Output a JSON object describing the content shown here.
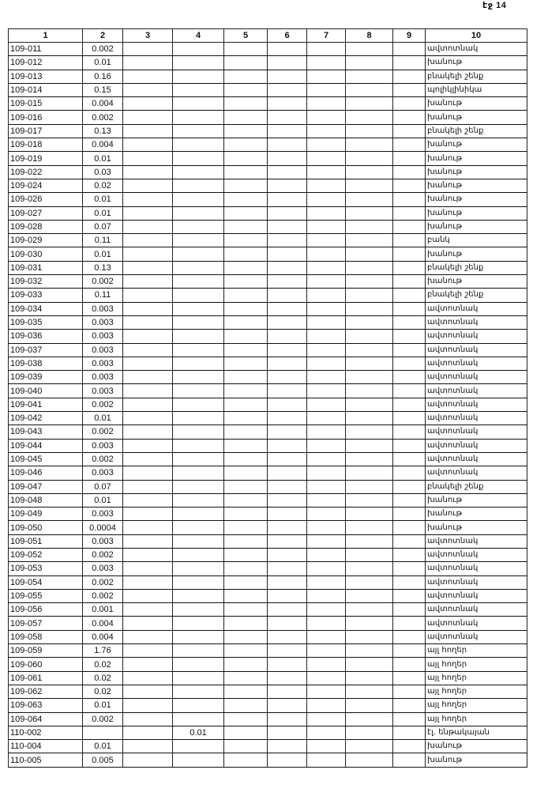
{
  "page_label": "էջ 14",
  "columns": [
    "1",
    "2",
    "3",
    "4",
    "5",
    "6",
    "7",
    "8",
    "9",
    "10"
  ],
  "rows": [
    [
      "109-011",
      "0.002",
      "",
      "",
      "",
      "",
      "",
      "",
      "",
      "ավտոտնակ"
    ],
    [
      "109-012",
      "0.01",
      "",
      "",
      "",
      "",
      "",
      "",
      "",
      "խանութ"
    ],
    [
      "109-013",
      "0.16",
      "",
      "",
      "",
      "",
      "",
      "",
      "",
      "բնակելի շենք"
    ],
    [
      "109-014",
      "0.15",
      "",
      "",
      "",
      "",
      "",
      "",
      "",
      "պոլիկլինիկա"
    ],
    [
      "109-015",
      "0.004",
      "",
      "",
      "",
      "",
      "",
      "",
      "",
      "խանութ"
    ],
    [
      "109-016",
      "0.002",
      "",
      "",
      "",
      "",
      "",
      "",
      "",
      "խանութ"
    ],
    [
      "109-017",
      "0.13",
      "",
      "",
      "",
      "",
      "",
      "",
      "",
      "բնակելի շենք"
    ],
    [
      "109-018",
      "0.004",
      "",
      "",
      "",
      "",
      "",
      "",
      "",
      "խանութ"
    ],
    [
      "109-019",
      "0.01",
      "",
      "",
      "",
      "",
      "",
      "",
      "",
      "խանութ"
    ],
    [
      "109-022",
      "0.03",
      "",
      "",
      "",
      "",
      "",
      "",
      "",
      "խանութ"
    ],
    [
      "109-024",
      "0.02",
      "",
      "",
      "",
      "",
      "",
      "",
      "",
      "խանութ"
    ],
    [
      "109-026",
      "0.01",
      "",
      "",
      "",
      "",
      "",
      "",
      "",
      "խանութ"
    ],
    [
      "109-027",
      "0.01",
      "",
      "",
      "",
      "",
      "",
      "",
      "",
      "խանութ"
    ],
    [
      "109-028",
      "0.07",
      "",
      "",
      "",
      "",
      "",
      "",
      "",
      "խանութ"
    ],
    [
      "109-029",
      "0.11",
      "",
      "",
      "",
      "",
      "",
      "",
      "",
      "բանկ"
    ],
    [
      "109-030",
      "0.01",
      "",
      "",
      "",
      "",
      "",
      "",
      "",
      "խանութ"
    ],
    [
      "109-031",
      "0.13",
      "",
      "",
      "",
      "",
      "",
      "",
      "",
      "բնակելի շենք"
    ],
    [
      "109-032",
      "0.002",
      "",
      "",
      "",
      "",
      "",
      "",
      "",
      "խանութ"
    ],
    [
      "109-033",
      "0.11",
      "",
      "",
      "",
      "",
      "",
      "",
      "",
      "բնակելի շենք"
    ],
    [
      "109-034",
      "0.003",
      "",
      "",
      "",
      "",
      "",
      "",
      "",
      "ավտոտնակ"
    ],
    [
      "109-035",
      "0.003",
      "",
      "",
      "",
      "",
      "",
      "",
      "",
      "ավտոտնակ"
    ],
    [
      "109-036",
      "0.003",
      "",
      "",
      "",
      "",
      "",
      "",
      "",
      "ավտոտնակ"
    ],
    [
      "109-037",
      "0.003",
      "",
      "",
      "",
      "",
      "",
      "",
      "",
      "ավտոտնակ"
    ],
    [
      "109-038",
      "0.003",
      "",
      "",
      "",
      "",
      "",
      "",
      "",
      "ավտոտնակ"
    ],
    [
      "109-039",
      "0.003",
      "",
      "",
      "",
      "",
      "",
      "",
      "",
      "ավտոտնակ"
    ],
    [
      "109-040",
      "0.003",
      "",
      "",
      "",
      "",
      "",
      "",
      "",
      "ավտոտնակ"
    ],
    [
      "109-041",
      "0.002",
      "",
      "",
      "",
      "",
      "",
      "",
      "",
      "ավտոտնակ"
    ],
    [
      "109-042",
      "0.01",
      "",
      "",
      "",
      "",
      "",
      "",
      "",
      "ավտոտնակ"
    ],
    [
      "109-043",
      "0.002",
      "",
      "",
      "",
      "",
      "",
      "",
      "",
      "ավտոտնակ"
    ],
    [
      "109-044",
      "0.003",
      "",
      "",
      "",
      "",
      "",
      "",
      "",
      "ավտոտնակ"
    ],
    [
      "109-045",
      "0.002",
      "",
      "",
      "",
      "",
      "",
      "",
      "",
      "ավտոտնակ"
    ],
    [
      "109-046",
      "0.003",
      "",
      "",
      "",
      "",
      "",
      "",
      "",
      "ավտոտնակ"
    ],
    [
      "109-047",
      "0.07",
      "",
      "",
      "",
      "",
      "",
      "",
      "",
      "բնակելի շենք"
    ],
    [
      "109-048",
      "0.01",
      "",
      "",
      "",
      "",
      "",
      "",
      "",
      "խանութ"
    ],
    [
      "109-049",
      "0.003",
      "",
      "",
      "",
      "",
      "",
      "",
      "",
      "խանութ"
    ],
    [
      "109-050",
      "0.0004",
      "",
      "",
      "",
      "",
      "",
      "",
      "",
      "խանութ"
    ],
    [
      "109-051",
      "0.003",
      "",
      "",
      "",
      "",
      "",
      "",
      "",
      "ավտոտնակ"
    ],
    [
      "109-052",
      "0.002",
      "",
      "",
      "",
      "",
      "",
      "",
      "",
      "ավտոտնակ"
    ],
    [
      "109-053",
      "0.003",
      "",
      "",
      "",
      "",
      "",
      "",
      "",
      "ավտոտնակ"
    ],
    [
      "109-054",
      "0.002",
      "",
      "",
      "",
      "",
      "",
      "",
      "",
      "ավտոտնակ"
    ],
    [
      "109-055",
      "0.002",
      "",
      "",
      "",
      "",
      "",
      "",
      "",
      "ավտոտնակ"
    ],
    [
      "109-056",
      "0.001",
      "",
      "",
      "",
      "",
      "",
      "",
      "",
      "ավտոտնակ"
    ],
    [
      "109-057",
      "0.004",
      "",
      "",
      "",
      "",
      "",
      "",
      "",
      "ավտոտնակ"
    ],
    [
      "109-058",
      "0.004",
      "",
      "",
      "",
      "",
      "",
      "",
      "",
      "ավտոտնակ"
    ],
    [
      "109-059",
      "1.76",
      "",
      "",
      "",
      "",
      "",
      "",
      "",
      "այլ հողեր"
    ],
    [
      "109-060",
      "0.02",
      "",
      "",
      "",
      "",
      "",
      "",
      "",
      "այլ հողեր"
    ],
    [
      "109-061",
      "0.02",
      "",
      "",
      "",
      "",
      "",
      "",
      "",
      "այլ հողեր"
    ],
    [
      "109-062",
      "0.02",
      "",
      "",
      "",
      "",
      "",
      "",
      "",
      "այլ հողեր"
    ],
    [
      "109-063",
      "0.01",
      "",
      "",
      "",
      "",
      "",
      "",
      "",
      "այլ հողեր"
    ],
    [
      "109-064",
      "0.002",
      "",
      "",
      "",
      "",
      "",
      "",
      "",
      "այլ հողեր"
    ],
    [
      "110-002",
      "",
      "",
      "0.01",
      "",
      "",
      "",
      "",
      "",
      "էլ. ենթակայան"
    ],
    [
      "110-004",
      "0.01",
      "",
      "",
      "",
      "",
      "",
      "",
      "",
      "խանութ"
    ],
    [
      "110-005",
      "0.005",
      "",
      "",
      "",
      "",
      "",
      "",
      "",
      "խանութ"
    ]
  ]
}
